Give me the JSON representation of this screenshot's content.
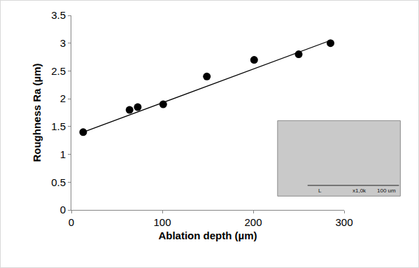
{
  "chart_data": {
    "type": "scatter",
    "x_label": "Ablation depth (µm)",
    "y_label": "Roughness Ra (µm)",
    "series": [
      {
        "type": "scatter",
        "marker": "circle",
        "color": "#000000",
        "x": [
          13,
          64,
          73,
          101,
          149,
          201,
          250,
          285
        ],
        "values": [
          1.4,
          1.8,
          1.85,
          1.9,
          2.4,
          2.7,
          2.8,
          3.0
        ]
      },
      {
        "type": "line",
        "line_style": "solid",
        "color": "#000000",
        "x": [
          13,
          285
        ],
        "values": [
          1.4,
          3.05
        ]
      }
    ],
    "xlim": [
      0,
      300
    ],
    "xticks": [
      0,
      100,
      200,
      300
    ],
    "ylim": [
      0,
      3.5
    ],
    "yticks": [
      0,
      0.5,
      1,
      1.5,
      2,
      2.5,
      3,
      3.5
    ],
    "grid": false,
    "annotations": [
      "L",
      "x1,0k",
      "100 um"
    ]
  }
}
